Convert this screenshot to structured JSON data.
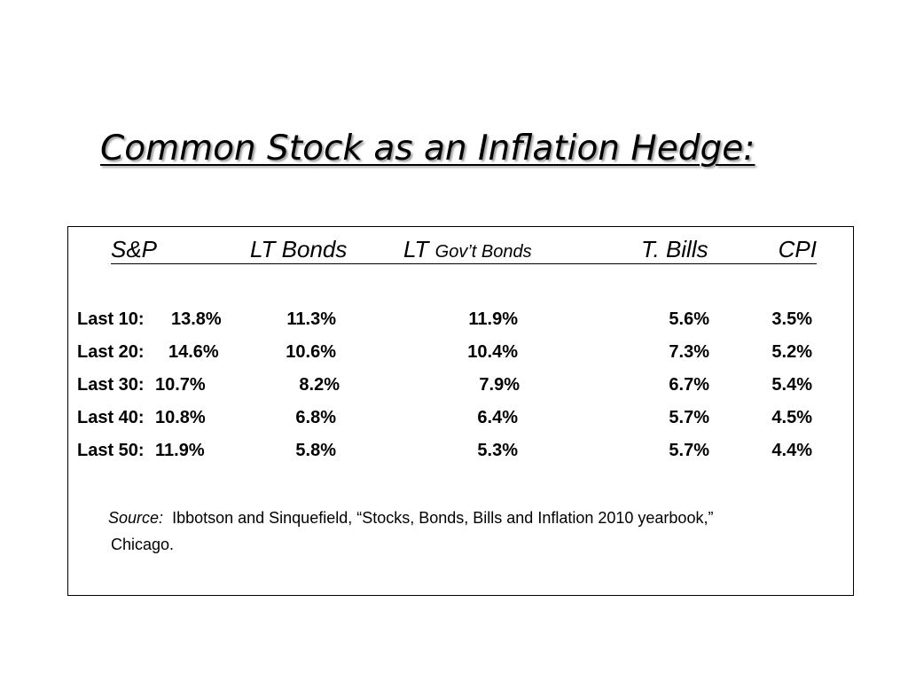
{
  "title": "Common Stock as an Inflation Hedge:",
  "table": {
    "headers": {
      "sp": "S&P",
      "lt_bonds": "LT Bonds",
      "lt_prefix": "LT",
      "govt_bonds": "Gov’t Bonds",
      "t_bills": "T. Bills",
      "cpi": "CPI"
    },
    "rows": [
      {
        "label": "Last 10:",
        "sp": "13.8%",
        "lt_bonds": "11.3%",
        "lt_govt_bonds": "11.9%",
        "t_bills": "5.6%",
        "cpi": "3.5%"
      },
      {
        "label": "Last 20:",
        "sp": "14.6%",
        "lt_bonds": "10.6%",
        "lt_govt_bonds": "10.4%",
        "t_bills": "7.3%",
        "cpi": "5.2%"
      },
      {
        "label": "Last 30:",
        "sp": "10.7%",
        "lt_bonds": "8.2%",
        "lt_govt_bonds": "7.9%",
        "t_bills": "6.7%",
        "cpi": "5.4%"
      },
      {
        "label": "Last 40:",
        "sp": "10.8%",
        "lt_bonds": "6.8%",
        "lt_govt_bonds": "6.4%",
        "t_bills": "5.7%",
        "cpi": "4.5%"
      },
      {
        "label": "Last 50:",
        "sp": "11.9%",
        "lt_bonds": "5.8%",
        "lt_govt_bonds": "5.3%",
        "t_bills": "5.7%",
        "cpi": "4.4%"
      }
    ]
  },
  "source": {
    "label": "Source:",
    "text": "Ibbotson and Sinquefield, “Stocks, Bonds, Bills and Inflation 2010  yearbook,”",
    "text_line2": "Chicago."
  }
}
